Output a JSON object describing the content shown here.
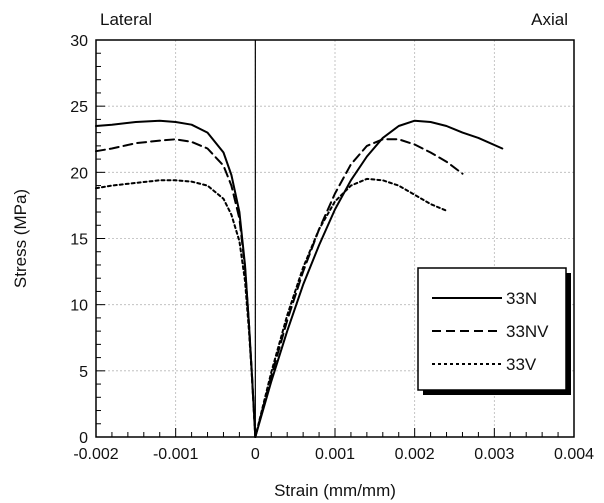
{
  "chart_data": {
    "type": "line",
    "title": "",
    "xlabel": "Strain (mm/mm)",
    "ylabel": "Stress (MPa)",
    "xlim": [
      -0.002,
      0.004
    ],
    "ylim": [
      0,
      30
    ],
    "xticks": [
      -0.002,
      -0.001,
      0,
      0.001,
      0.002,
      0.003,
      0.004
    ],
    "xtick_labels": [
      "-0.002",
      "-0.001",
      "0",
      "0.001",
      "0.002",
      "0.003",
      "0.004"
    ],
    "yticks": [
      0,
      5,
      10,
      15,
      20,
      25,
      30
    ],
    "ytick_labels": [
      "0",
      "5",
      "10",
      "15",
      "20",
      "25",
      "30"
    ],
    "grid": true,
    "legend_position": "bottom-right",
    "annotations": {
      "left": "Lateral",
      "right": "Axial"
    },
    "series": [
      {
        "name": "33N",
        "style": "solid",
        "color": "#000000",
        "lateral": {
          "x": [
            -0.002,
            -0.0018,
            -0.0015,
            -0.0012,
            -0.001,
            -0.0008,
            -0.0006,
            -0.0004,
            -0.0003,
            -0.0002,
            -0.00013,
            -8e-05,
            -4e-05,
            0
          ],
          "y": [
            23.5,
            23.6,
            23.8,
            23.9,
            23.8,
            23.6,
            23.0,
            21.5,
            19.8,
            17.0,
            13.0,
            8.5,
            4.5,
            0
          ]
        },
        "axial": {
          "x": [
            0,
            0.0002,
            0.0004,
            0.0006,
            0.0008,
            0.001,
            0.0012,
            0.0014,
            0.0016,
            0.0018,
            0.002,
            0.0022,
            0.0024,
            0.0026,
            0.0028,
            0.0031
          ],
          "y": [
            0,
            4.2,
            8.0,
            11.5,
            14.5,
            17.2,
            19.4,
            21.2,
            22.6,
            23.5,
            23.9,
            23.8,
            23.5,
            23.0,
            22.6,
            21.8
          ]
        }
      },
      {
        "name": "33NV",
        "style": "dashed",
        "color": "#000000",
        "lateral": {
          "x": [
            -0.002,
            -0.0018,
            -0.0015,
            -0.0012,
            -0.001,
            -0.0008,
            -0.0006,
            -0.0004,
            -0.0003,
            -0.0002,
            -0.00013,
            -8e-05,
            -4e-05,
            0
          ],
          "y": [
            21.6,
            21.8,
            22.2,
            22.4,
            22.5,
            22.3,
            21.8,
            20.5,
            19.0,
            16.5,
            12.8,
            8.5,
            4.5,
            0
          ]
        },
        "axial": {
          "x": [
            0,
            0.0002,
            0.0004,
            0.0006,
            0.0008,
            0.001,
            0.0012,
            0.0014,
            0.0016,
            0.0018,
            0.002,
            0.0022,
            0.0024,
            0.0026
          ],
          "y": [
            0,
            4.6,
            8.8,
            12.5,
            15.7,
            18.4,
            20.6,
            22.0,
            22.5,
            22.5,
            22.1,
            21.5,
            20.8,
            19.9
          ]
        }
      },
      {
        "name": "33V",
        "style": "dotted",
        "color": "#000000",
        "lateral": {
          "x": [
            -0.002,
            -0.0018,
            -0.0015,
            -0.0012,
            -0.001,
            -0.0008,
            -0.0006,
            -0.0004,
            -0.0003,
            -0.0002,
            -0.00013,
            -8e-05,
            -4e-05,
            0
          ],
          "y": [
            18.8,
            19.0,
            19.2,
            19.4,
            19.4,
            19.3,
            19.0,
            18.0,
            16.8,
            14.8,
            11.8,
            8.0,
            4.3,
            0
          ]
        },
        "axial": {
          "x": [
            0,
            0.0002,
            0.0004,
            0.0006,
            0.0008,
            0.001,
            0.0012,
            0.0014,
            0.0016,
            0.0018,
            0.002,
            0.0022,
            0.0024
          ],
          "y": [
            0,
            4.9,
            9.2,
            12.8,
            15.7,
            17.8,
            19.0,
            19.5,
            19.4,
            19.0,
            18.3,
            17.6,
            17.1
          ]
        }
      }
    ]
  }
}
